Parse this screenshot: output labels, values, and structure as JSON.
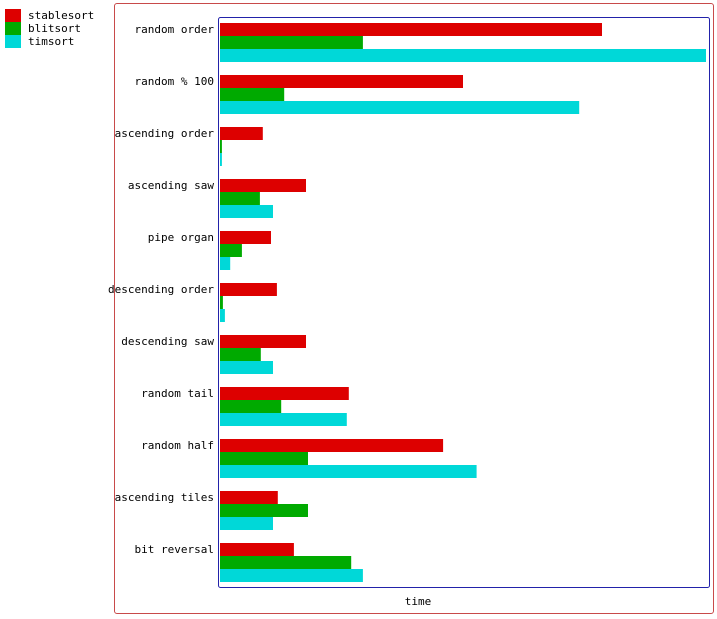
{
  "legend": [
    {
      "name": "stablesort",
      "color": "#dd0000"
    },
    {
      "name": "blitsort",
      "color": "#00aa00"
    },
    {
      "name": "timsort",
      "color": "#00d8d8"
    }
  ],
  "chart_data": {
    "type": "bar",
    "orientation": "horizontal",
    "title": "",
    "xlabel": "time",
    "ylabel": "",
    "xlim": [
      0,
      1.0
    ],
    "grid": false,
    "legend_position": "top-left",
    "categories": [
      "random order",
      "random % 100",
      "ascending order",
      "ascending saw",
      "pipe organ",
      "descending order",
      "descending saw",
      "random tail",
      "random half",
      "ascending tiles",
      "bit reversal"
    ],
    "series": [
      {
        "name": "stablesort",
        "color": "#dd0000",
        "values": [
          0.786,
          0.5,
          0.088,
          0.177,
          0.105,
          0.117,
          0.177,
          0.265,
          0.459,
          0.119,
          0.152
        ]
      },
      {
        "name": "blitsort",
        "color": "#00aa00",
        "values": [
          0.294,
          0.132,
          0.004,
          0.082,
          0.045,
          0.006,
          0.084,
          0.126,
          0.181,
          0.181,
          0.27
        ]
      },
      {
        "name": "timsort",
        "color": "#00d8d8",
        "values": [
          1.0,
          0.739,
          0.004,
          0.109,
          0.021,
          0.01,
          0.109,
          0.261,
          0.528,
          0.109,
          0.294
        ]
      }
    ]
  }
}
